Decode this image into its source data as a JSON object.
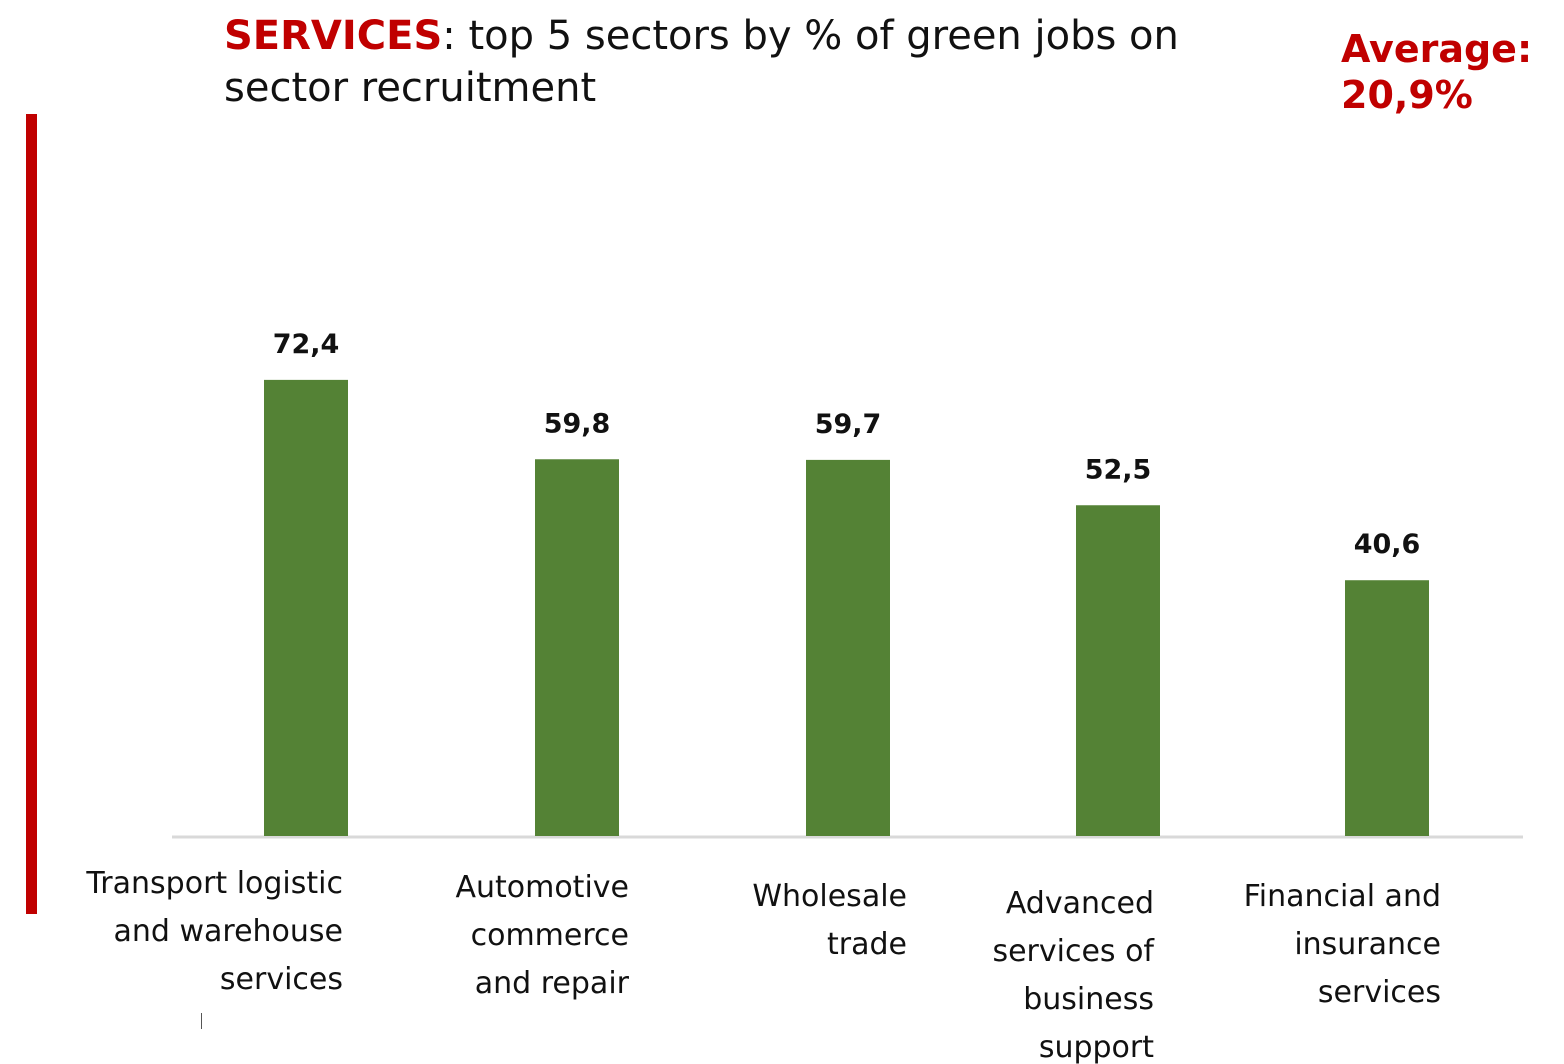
{
  "header": {
    "title_prefix": "SERVICES",
    "title_rest": ": top 5 sectors by % of green jobs on sector recruitment"
  },
  "average": {
    "label": "Average:",
    "value": "20,9%"
  },
  "colors": {
    "accent": "#c00000",
    "bar": "#548235",
    "axis": "#d9d9d9"
  },
  "chart_data": {
    "type": "bar",
    "categories": [
      "Transport logistic and warehouse services",
      "Automotive commerce and repair",
      "Wholesale trade",
      "Advanced services of business support",
      "Financial and insurance services"
    ],
    "values": [
      72.4,
      59.8,
      59.7,
      52.5,
      40.6
    ],
    "value_labels": [
      "72,4",
      "59,8",
      "59,7",
      "52,5",
      "40,6"
    ],
    "title": "SERVICES: top 5 sectors by % of green jobs on sector recruitment",
    "xlabel": "",
    "ylabel": "",
    "grid": false
  }
}
